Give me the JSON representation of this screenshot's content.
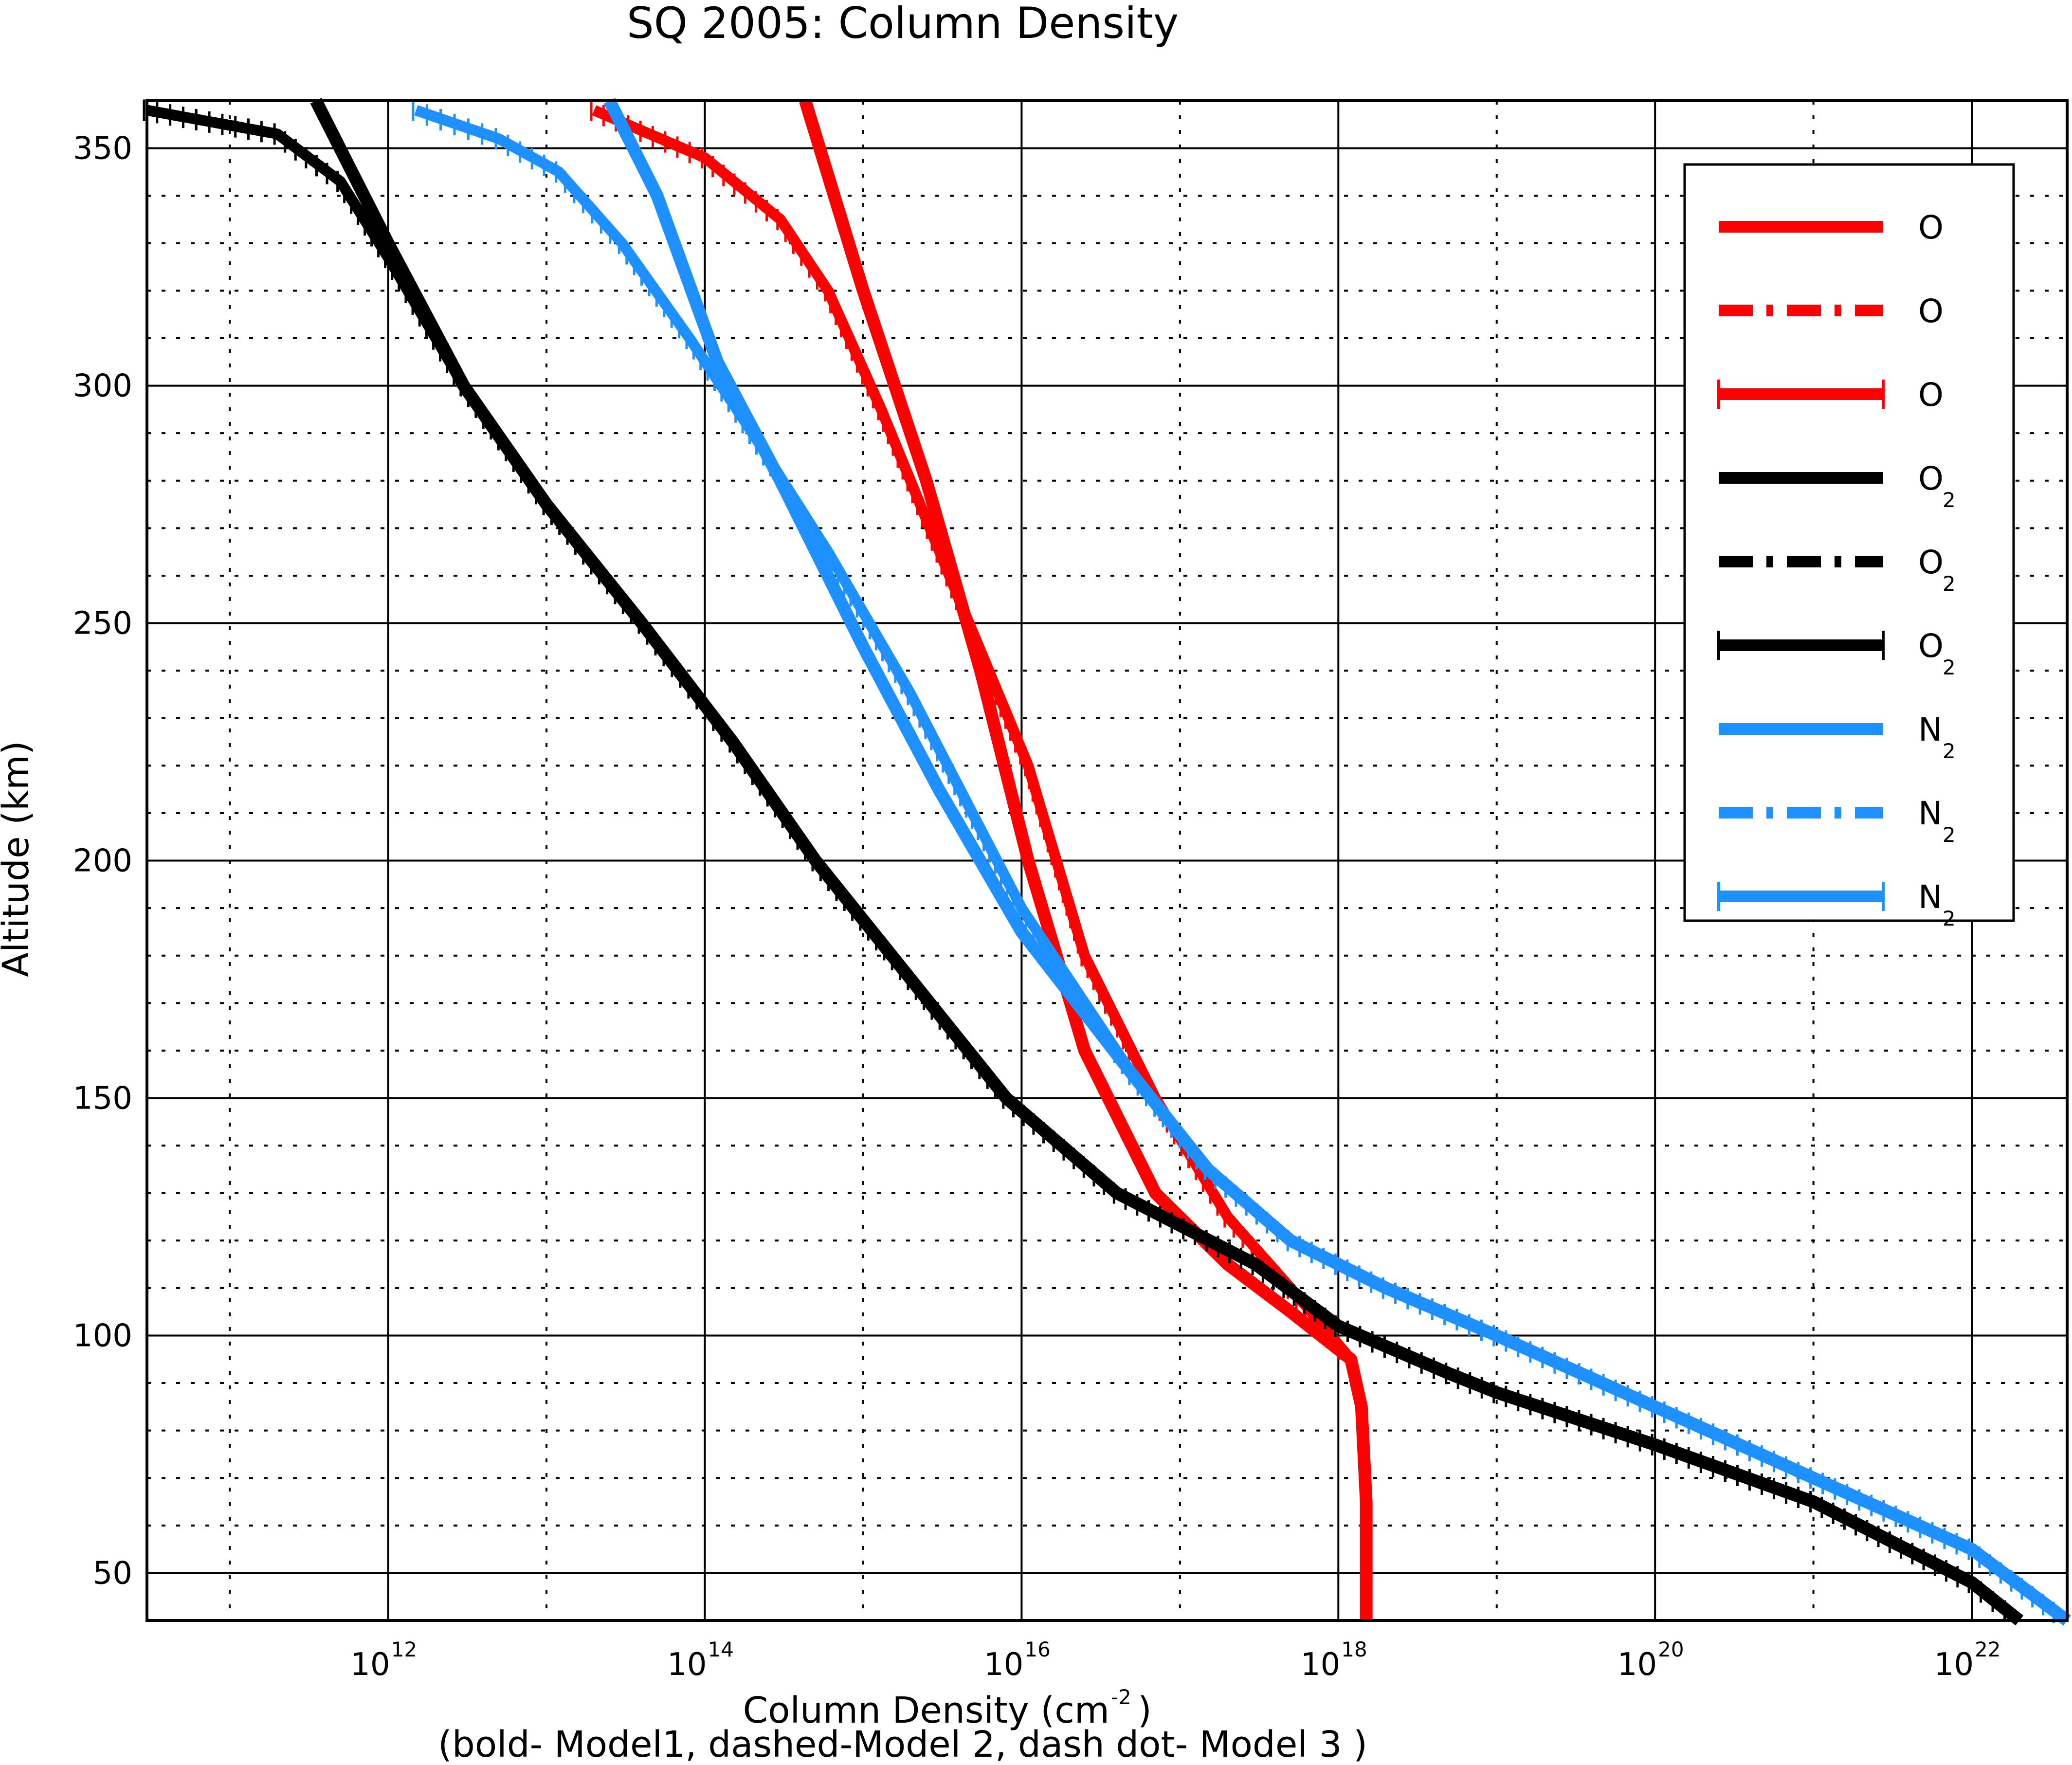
{
  "chart_data": {
    "type": "line",
    "title": "SQ 2005: Column Density",
    "xlabel": "Column Density (cm",
    "xlabel_sup": "-2",
    "xlabel_close": " )",
    "subcaption": "(bold- Model1, dashed-Model 2, dash dot- Model 3 )",
    "ylabel": "Altitude (km)",
    "xscale": "log",
    "xlim": [
      30000000000.0,
      4e+22
    ],
    "ylim": [
      40,
      360
    ],
    "grid": true,
    "legend_position": "upper-right",
    "xticks": [
      {
        "value": 1000000000000.0,
        "base": "10",
        "exp": "12"
      },
      {
        "value": 100000000000000.0,
        "base": "10",
        "exp": "14"
      },
      {
        "value": 1e+16,
        "base": "10",
        "exp": "16"
      },
      {
        "value": 1e+18,
        "base": "10",
        "exp": "18"
      },
      {
        "value": 1e+20,
        "base": "10",
        "exp": "20"
      },
      {
        "value": 1e+22,
        "base": "10",
        "exp": "22"
      }
    ],
    "yticks": [
      {
        "value": 50,
        "label": "50"
      },
      {
        "value": 100,
        "label": "100"
      },
      {
        "value": 150,
        "label": "150"
      },
      {
        "value": 200,
        "label": "200"
      },
      {
        "value": 250,
        "label": "250"
      },
      {
        "value": 300,
        "label": "300"
      },
      {
        "value": 350,
        "label": "350"
      }
    ],
    "colors": {
      "O": "#ff0000",
      "O2": "#000000",
      "N2": "#1e90ff"
    },
    "series": [
      {
        "species": "O",
        "label_base": "O",
        "label_sub": "",
        "style": "bold",
        "color": "#ff0000",
        "x": [
          430000000000000.0,
          1000000000000000.0,
          2500000000000000.0,
          5500000000000000.0,
          1.1e+16,
          2.5e+16,
          7e+16,
          2e+17,
          5e+17,
          1.2e+18,
          1.4e+18,
          1.5e+18,
          1.5e+18
        ],
        "y": [
          360,
          320,
          280,
          240,
          200,
          160,
          130,
          115,
          105,
          95,
          85,
          65,
          40
        ]
      },
      {
        "species": "O",
        "label_base": "O",
        "label_sub": "",
        "style": "dash-dot",
        "color": "#ff0000",
        "x": [
          20000000000000.0,
          100000000000000.0,
          300000000000000.0,
          600000000000000.0,
          1300000000000000.0,
          3500000000000000.0,
          1.1e+16,
          2.5e+16,
          7e+16,
          2e+17,
          5e+17,
          1.2e+18,
          1.4e+18,
          1.5e+18,
          1.5e+18
        ],
        "y": [
          358,
          348,
          335,
          320,
          295,
          260,
          220,
          180,
          150,
          125,
          110,
          95,
          85,
          65,
          40
        ]
      },
      {
        "species": "O",
        "label_base": "O",
        "label_sub": "",
        "style": "dashed-cross",
        "color": "#ff0000",
        "x": [
          20000000000000.0,
          100000000000000.0,
          300000000000000.0,
          600000000000000.0,
          1300000000000000.0,
          3500000000000000.0,
          1.1e+16,
          2.5e+16,
          7e+16,
          2e+17,
          5e+17,
          1.2e+18,
          1.4e+18,
          1.5e+18,
          1.5e+18
        ],
        "y": [
          358,
          348,
          335,
          320,
          295,
          260,
          220,
          180,
          150,
          125,
          110,
          95,
          85,
          65,
          40
        ]
      },
      {
        "species": "O2",
        "label_base": "O",
        "label_sub": "2",
        "style": "bold",
        "color": "#000000",
        "x": [
          350000000000.0,
          1000000000000.0,
          3000000000000.0,
          10000000000000.0,
          40000000000000.0,
          150000000000000.0,
          500000000000000.0,
          2000000000000000.0,
          8000000000000000.0,
          4e+16,
          3e+17,
          1e+18,
          5e+18,
          1e+19,
          1e+20,
          1e+21,
          1e+22,
          2e+22
        ],
        "y": [
          360,
          330,
          300,
          275,
          250,
          225,
          200,
          175,
          150,
          130,
          115,
          102,
          92,
          88,
          77,
          65,
          48,
          40
        ]
      },
      {
        "species": "O2",
        "label_base": "O",
        "label_sub": "2",
        "style": "dash-dot",
        "color": "#000000",
        "x": [
          30000000000.0,
          200000000000.0,
          500000000000.0,
          1000000000000.0,
          3000000000000.0,
          10000000000000.0,
          40000000000000.0,
          150000000000000.0,
          500000000000000.0,
          2000000000000000.0,
          8000000000000000.0,
          4e+16,
          3e+17,
          1e+18,
          5e+18,
          1e+19,
          1e+20,
          1e+21,
          1e+22,
          2e+22
        ],
        "y": [
          358,
          353,
          343,
          327,
          300,
          275,
          250,
          225,
          200,
          175,
          150,
          130,
          115,
          102,
          92,
          88,
          77,
          65,
          48,
          40
        ]
      },
      {
        "species": "O2",
        "label_base": "O",
        "label_sub": "2",
        "style": "dashed-cross",
        "color": "#000000",
        "x": [
          30000000000.0,
          200000000000.0,
          500000000000.0,
          1000000000000.0,
          3000000000000.0,
          10000000000000.0,
          40000000000000.0,
          150000000000000.0,
          500000000000000.0,
          2000000000000000.0,
          8000000000000000.0,
          4e+16,
          3e+17,
          1e+18,
          5e+18,
          1e+19,
          1e+20,
          1e+21,
          1e+22,
          2e+22
        ],
        "y": [
          358,
          353,
          343,
          327,
          300,
          275,
          250,
          225,
          200,
          175,
          150,
          130,
          115,
          102,
          92,
          88,
          77,
          65,
          48,
          40
        ]
      },
      {
        "species": "N2",
        "label_base": "N",
        "label_sub": "2",
        "style": "bold",
        "color": "#1e90ff",
        "x": [
          25000000000000.0,
          50000000000000.0,
          120000000000000.0,
          300000000000000.0,
          1000000000000000.0,
          3000000000000000.0,
          1e+16,
          5e+16,
          1.5e+17,
          5e+17,
          2e+18,
          1e+19,
          1e+20,
          1e+21,
          1e+22,
          4e+22
        ],
        "y": [
          360,
          340,
          305,
          280,
          245,
          215,
          185,
          155,
          135,
          120,
          110,
          100,
          85,
          70,
          55,
          40
        ]
      },
      {
        "species": "N2",
        "label_base": "N",
        "label_sub": "2",
        "style": "dash-dot",
        "color": "#1e90ff",
        "x": [
          1500000000000.0,
          5000000000000.0,
          12000000000000.0,
          30000000000000.0,
          80000000000000.0,
          200000000000000.0,
          600000000000000.0,
          2000000000000000.0,
          1e+16,
          5e+16,
          1.5e+17,
          5e+17,
          2e+18,
          1e+19,
          1e+20,
          1e+21,
          1e+22,
          4e+22
        ],
        "y": [
          358,
          352,
          345,
          330,
          310,
          290,
          265,
          235,
          190,
          155,
          135,
          120,
          110,
          100,
          85,
          70,
          55,
          40
        ]
      },
      {
        "species": "N2",
        "label_base": "N",
        "label_sub": "2",
        "style": "dashed-cross",
        "color": "#1e90ff",
        "x": [
          1500000000000.0,
          5000000000000.0,
          12000000000000.0,
          30000000000000.0,
          80000000000000.0,
          200000000000000.0,
          600000000000000.0,
          2000000000000000.0,
          1e+16,
          5e+16,
          1.5e+17,
          5e+17,
          2e+18,
          1e+19,
          1e+20,
          1e+21,
          1e+22,
          4e+22
        ],
        "y": [
          358,
          352,
          345,
          330,
          310,
          290,
          265,
          235,
          190,
          155,
          135,
          120,
          110,
          100,
          85,
          70,
          55,
          40
        ]
      }
    ]
  }
}
